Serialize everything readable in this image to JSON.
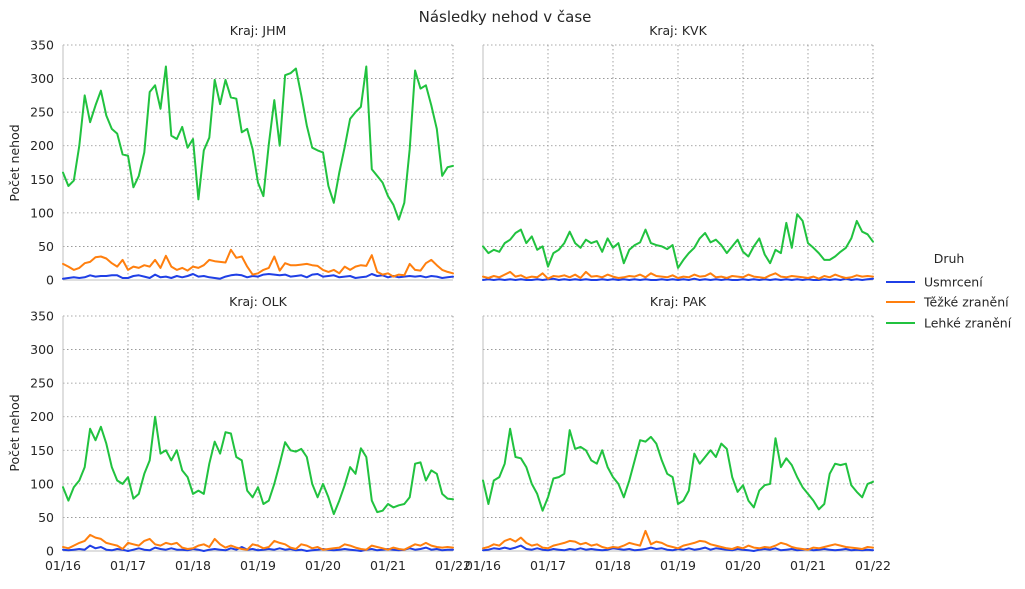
{
  "figure": {
    "title": "Následky nehod v čase",
    "ylabel": "Počet nehod"
  },
  "legend": {
    "title": "Druh",
    "placement": "right",
    "items": [
      {
        "label": "Usmrcení",
        "color": "#1f3fe6"
      },
      {
        "label": "Těžké zranění",
        "color": "#ff7f0e"
      },
      {
        "label": "Lehké zranění",
        "color": "#21c23f"
      }
    ]
  },
  "chart_data": [
    {
      "type": "line",
      "title": "Kraj: JHM",
      "x_ticks": [
        "01/16",
        "01/17",
        "01/18",
        "01/19",
        "01/20",
        "01/21",
        "01/22"
      ],
      "x_range": [
        "2016-01",
        "2022-01"
      ],
      "ylim": [
        0,
        350
      ],
      "y_ticks": [
        0,
        50,
        100,
        150,
        200,
        250,
        300,
        350
      ],
      "grid": true,
      "series": [
        {
          "name": "Usmrcení",
          "color": "#1f3fe6",
          "values": [
            2,
            3,
            4,
            3,
            4,
            7,
            5,
            6,
            6,
            7,
            7,
            3,
            3,
            6,
            7,
            5,
            3,
            8,
            4,
            5,
            3,
            6,
            4,
            6,
            9,
            5,
            6,
            4,
            3,
            2,
            5,
            7,
            8,
            7,
            4,
            6,
            5,
            8,
            9,
            8,
            7,
            8,
            5,
            6,
            7,
            4,
            8,
            9,
            5,
            6,
            7,
            4,
            5,
            6,
            3,
            4,
            5,
            9,
            6,
            7,
            4,
            6,
            4,
            5,
            6,
            5,
            6,
            4,
            6,
            5,
            3,
            4,
            5
          ]
        },
        {
          "name": "Těžké zranění",
          "color": "#ff7f0e",
          "values": [
            24,
            20,
            15,
            18,
            25,
            27,
            34,
            35,
            32,
            25,
            20,
            30,
            15,
            20,
            18,
            22,
            20,
            30,
            18,
            36,
            20,
            15,
            18,
            14,
            20,
            18,
            22,
            30,
            28,
            27,
            26,
            45,
            33,
            35,
            20,
            8,
            10,
            15,
            18,
            35,
            14,
            25,
            22,
            22,
            23,
            24,
            22,
            21,
            15,
            12,
            15,
            10,
            20,
            15,
            20,
            22,
            21,
            37,
            12,
            8,
            10,
            5,
            8,
            7,
            24,
            15,
            14,
            25,
            30,
            22,
            15,
            12,
            10
          ]
        },
        {
          "name": "Lehké zranění",
          "color": "#21c23f",
          "values": [
            160,
            140,
            148,
            200,
            275,
            235,
            260,
            282,
            245,
            225,
            218,
            187,
            185,
            138,
            155,
            190,
            280,
            290,
            255,
            318,
            215,
            210,
            228,
            197,
            210,
            120,
            193,
            212,
            298,
            262,
            298,
            272,
            270,
            220,
            225,
            195,
            145,
            125,
            202,
            268,
            200,
            305,
            308,
            315,
            275,
            230,
            197,
            193,
            190,
            140,
            115,
            160,
            198,
            240,
            250,
            258,
            318,
            165,
            155,
            145,
            125,
            112,
            90,
            115,
            195,
            312,
            285,
            290,
            260,
            225,
            155,
            168,
            170
          ]
        }
      ]
    },
    {
      "type": "line",
      "title": "Kraj: KVK",
      "x_ticks": [
        "01/16",
        "01/17",
        "01/18",
        "01/19",
        "01/20",
        "01/21",
        "01/22"
      ],
      "x_range": [
        "2016-01",
        "2022-01"
      ],
      "ylim": [
        0,
        350
      ],
      "y_ticks": [
        0,
        50,
        100,
        150,
        200,
        250,
        300,
        350
      ],
      "grid": true,
      "series": [
        {
          "name": "Usmrcení",
          "color": "#1f3fe6",
          "values": [
            0,
            1,
            0,
            1,
            0,
            1,
            0,
            1,
            0,
            0,
            1,
            0,
            1,
            2,
            0,
            1,
            0,
            1,
            0,
            1,
            0,
            0,
            1,
            0,
            1,
            0,
            1,
            0,
            1,
            0,
            1,
            0,
            0,
            1,
            0,
            1,
            0,
            1,
            0,
            2,
            0,
            1,
            0,
            1,
            0,
            1,
            0,
            0,
            1,
            0,
            1,
            0,
            1,
            0,
            1,
            0,
            1,
            0,
            1,
            0,
            1,
            0,
            0,
            1,
            0,
            1,
            0,
            2,
            0,
            1,
            0,
            1,
            2
          ]
        },
        {
          "name": "Těžké zranění",
          "color": "#ff7f0e",
          "values": [
            5,
            3,
            6,
            4,
            8,
            12,
            5,
            7,
            3,
            5,
            4,
            10,
            2,
            6,
            5,
            7,
            4,
            8,
            3,
            12,
            5,
            6,
            4,
            8,
            5,
            3,
            4,
            6,
            5,
            8,
            4,
            10,
            6,
            5,
            4,
            7,
            3,
            5,
            4,
            8,
            5,
            6,
            10,
            4,
            5,
            3,
            6,
            5,
            4,
            8,
            5,
            4,
            3,
            7,
            10,
            5,
            4,
            6,
            5,
            4,
            3,
            5,
            2,
            6,
            4,
            8,
            5,
            3,
            4,
            7,
            5,
            6,
            5
          ]
        },
        {
          "name": "Lehké zranění",
          "color": "#21c23f",
          "values": [
            50,
            40,
            45,
            42,
            55,
            60,
            70,
            75,
            55,
            65,
            45,
            50,
            20,
            40,
            45,
            55,
            72,
            55,
            48,
            60,
            55,
            58,
            42,
            62,
            48,
            55,
            25,
            45,
            52,
            56,
            75,
            55,
            52,
            50,
            46,
            52,
            18,
            30,
            40,
            48,
            62,
            70,
            56,
            60,
            52,
            40,
            50,
            60,
            42,
            35,
            50,
            62,
            38,
            25,
            45,
            40,
            85,
            48,
            98,
            88,
            55,
            48,
            40,
            30,
            30,
            35,
            42,
            48,
            62,
            88,
            72,
            68,
            57
          ]
        }
      ]
    },
    {
      "type": "line",
      "title": "Kraj: OLK",
      "x_ticks": [
        "01/16",
        "01/17",
        "01/18",
        "01/19",
        "01/20",
        "01/21",
        "01/22"
      ],
      "x_range": [
        "2016-01",
        "2022-01"
      ],
      "ylim": [
        0,
        350
      ],
      "y_ticks": [
        0,
        50,
        100,
        150,
        200,
        250,
        300,
        350
      ],
      "grid": true,
      "series": [
        {
          "name": "Usmrcení",
          "color": "#1f3fe6",
          "values": [
            2,
            1,
            2,
            3,
            2,
            8,
            4,
            6,
            2,
            1,
            3,
            2,
            0,
            2,
            4,
            2,
            1,
            5,
            3,
            2,
            4,
            2,
            2,
            1,
            3,
            2,
            0,
            2,
            3,
            2,
            1,
            4,
            2,
            6,
            2,
            3,
            1,
            2,
            3,
            2,
            4,
            2,
            3,
            1,
            2,
            0,
            1,
            2,
            3,
            2,
            1,
            2,
            3,
            2,
            1,
            0,
            2,
            3,
            1,
            2,
            3,
            2,
            1,
            2,
            4,
            2,
            3,
            5,
            2,
            3,
            1,
            2,
            2
          ]
        },
        {
          "name": "Těžké zranění",
          "color": "#ff7f0e",
          "values": [
            6,
            4,
            8,
            12,
            15,
            24,
            20,
            18,
            12,
            10,
            8,
            3,
            12,
            10,
            8,
            15,
            18,
            10,
            8,
            12,
            10,
            12,
            5,
            3,
            4,
            8,
            10,
            6,
            18,
            10,
            5,
            8,
            5,
            3,
            2,
            10,
            8,
            4,
            6,
            15,
            12,
            10,
            5,
            3,
            10,
            8,
            4,
            6,
            2,
            3,
            4,
            5,
            10,
            8,
            5,
            3,
            2,
            8,
            6,
            4,
            2,
            5,
            3,
            2,
            6,
            10,
            8,
            12,
            8,
            6,
            5,
            6,
            5
          ]
        },
        {
          "name": "Lehké zranění",
          "color": "#21c23f",
          "values": [
            95,
            75,
            95,
            105,
            125,
            182,
            165,
            185,
            160,
            125,
            105,
            100,
            110,
            78,
            85,
            115,
            135,
            200,
            145,
            150,
            135,
            150,
            120,
            110,
            85,
            90,
            85,
            130,
            163,
            145,
            177,
            175,
            140,
            135,
            90,
            80,
            95,
            70,
            75,
            100,
            130,
            162,
            150,
            148,
            152,
            140,
            100,
            80,
            100,
            80,
            55,
            75,
            98,
            125,
            115,
            153,
            140,
            75,
            58,
            60,
            70,
            65,
            68,
            70,
            80,
            130,
            132,
            105,
            120,
            115,
            85,
            78,
            77
          ]
        }
      ]
    },
    {
      "type": "line",
      "title": "Kraj: PAK",
      "x_ticks": [
        "01/16",
        "01/17",
        "01/18",
        "01/19",
        "01/20",
        "01/21",
        "01/22"
      ],
      "x_range": [
        "2016-01",
        "2022-01"
      ],
      "ylim": [
        0,
        350
      ],
      "y_ticks": [
        0,
        50,
        100,
        150,
        200,
        250,
        300,
        350
      ],
      "grid": true,
      "series": [
        {
          "name": "Usmrcení",
          "color": "#1f3fe6",
          "values": [
            1,
            2,
            4,
            3,
            5,
            3,
            5,
            8,
            3,
            2,
            4,
            2,
            1,
            3,
            2,
            1,
            3,
            2,
            4,
            2,
            3,
            2,
            1,
            2,
            4,
            3,
            2,
            3,
            1,
            2,
            3,
            5,
            3,
            4,
            2,
            1,
            3,
            2,
            4,
            2,
            3,
            5,
            2,
            4,
            3,
            2,
            1,
            3,
            2,
            1,
            0,
            2,
            3,
            2,
            4,
            1,
            2,
            3,
            1,
            2,
            3,
            1,
            2,
            3,
            2,
            1,
            2,
            3,
            1,
            2,
            1,
            2,
            1
          ]
        },
        {
          "name": "Těžké zranění",
          "color": "#ff7f0e",
          "values": [
            4,
            6,
            10,
            8,
            15,
            18,
            14,
            20,
            12,
            8,
            10,
            5,
            4,
            8,
            10,
            12,
            15,
            14,
            10,
            12,
            8,
            10,
            6,
            4,
            6,
            5,
            8,
            12,
            10,
            8,
            30,
            10,
            14,
            12,
            8,
            6,
            4,
            8,
            10,
            12,
            15,
            14,
            10,
            8,
            6,
            4,
            3,
            6,
            4,
            8,
            5,
            4,
            6,
            5,
            8,
            12,
            10,
            6,
            4,
            3,
            2,
            5,
            4,
            6,
            8,
            10,
            8,
            6,
            5,
            4,
            3,
            6,
            5
          ]
        },
        {
          "name": "Lehké zranění",
          "color": "#21c23f",
          "values": [
            105,
            70,
            105,
            110,
            130,
            182,
            140,
            138,
            125,
            100,
            85,
            60,
            80,
            108,
            110,
            115,
            180,
            152,
            155,
            150,
            135,
            130,
            150,
            125,
            110,
            100,
            80,
            105,
            135,
            165,
            163,
            170,
            160,
            135,
            115,
            110,
            70,
            75,
            90,
            145,
            130,
            140,
            150,
            140,
            160,
            152,
            110,
            88,
            98,
            75,
            65,
            90,
            98,
            100,
            168,
            125,
            138,
            128,
            110,
            95,
            85,
            75,
            62,
            70,
            115,
            130,
            128,
            130,
            98,
            88,
            80,
            100,
            103
          ]
        }
      ]
    }
  ]
}
